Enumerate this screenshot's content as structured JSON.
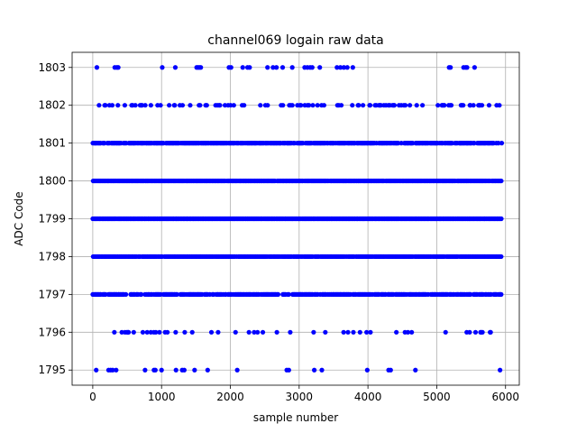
{
  "chart_data": {
    "type": "scatter",
    "title": "channel069 logain raw data",
    "xlabel": "sample number",
    "ylabel": "ADC Code",
    "xlim": [
      -300,
      6200
    ],
    "ylim": [
      1794.6,
      1803.4
    ],
    "xticks": [
      0,
      1000,
      2000,
      3000,
      4000,
      5000,
      6000
    ],
    "yticks": [
      1795,
      1796,
      1797,
      1798,
      1799,
      1800,
      1801,
      1802,
      1803
    ],
    "grid": true,
    "marker_color": "#0000ff",
    "n_samples": 5940,
    "levels": [
      {
        "y": 1803,
        "x": [
          60,
          320,
          350,
          370,
          1010,
          1200,
          1510,
          1530,
          1550,
          1570,
          1980,
          2010,
          2180,
          2250,
          2280,
          2540,
          2620,
          2670,
          2760,
          2900,
          3080,
          3120,
          3160,
          3190,
          3300,
          3550,
          3600,
          3650,
          3700,
          3780,
          5180,
          5200,
          5390,
          5420,
          5440,
          5550
        ]
      },
      {
        "y": 1802,
        "density": 0.28
      },
      {
        "y": 1801,
        "density": 0.85
      },
      {
        "y": 1800,
        "density": 0.97
      },
      {
        "y": 1799,
        "density": 1.0
      },
      {
        "y": 1798,
        "density": 0.95
      },
      {
        "y": 1797,
        "density": 0.78
      },
      {
        "y": 1796,
        "density": 0.09
      },
      {
        "y": 1795,
        "x": [
          50,
          230,
          260,
          290,
          340,
          760,
          890,
          910,
          1000,
          1210,
          1300,
          1330,
          1480,
          1670,
          2100,
          2820,
          2850,
          3220,
          3330,
          3990,
          4300,
          4330,
          4690,
          5920
        ]
      }
    ]
  }
}
